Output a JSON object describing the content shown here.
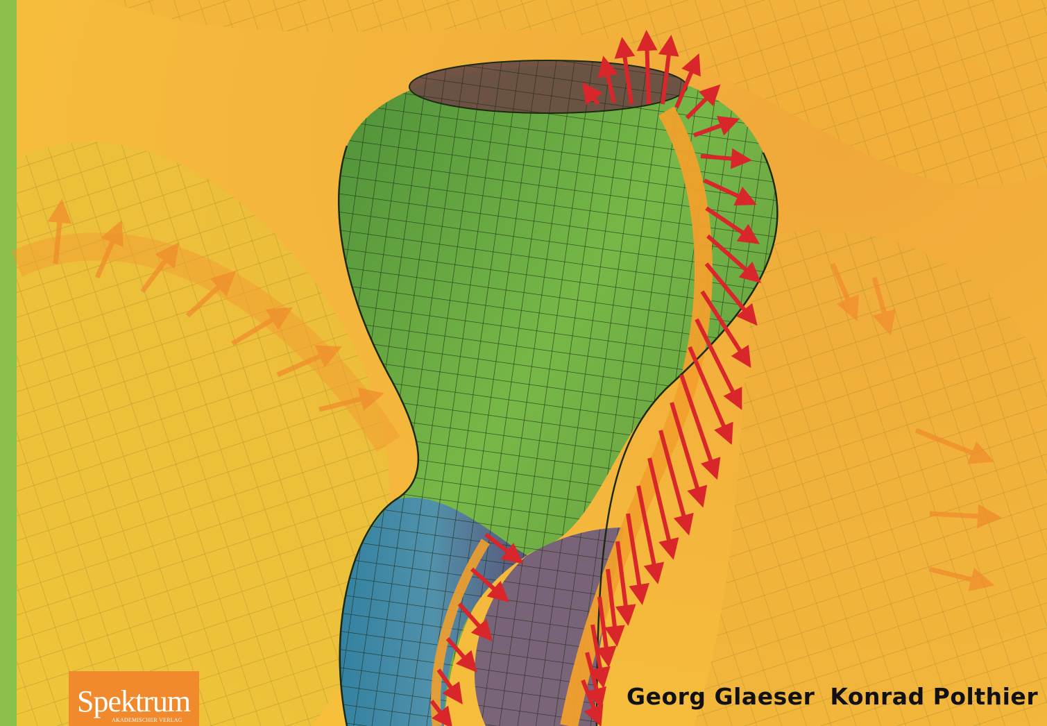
{
  "cover": {
    "authors": [
      "Georg Glaeser",
      "Konrad Polthier"
    ],
    "publisher": {
      "name": "Spektrum",
      "subtitle": "AKADEMISCHER VERLAG"
    },
    "colors": {
      "background": "#f4b43c",
      "spine": "#8bc04a",
      "surface": "#5fae44",
      "arrows": "#d8262a",
      "logo": "#f08a2c"
    }
  }
}
